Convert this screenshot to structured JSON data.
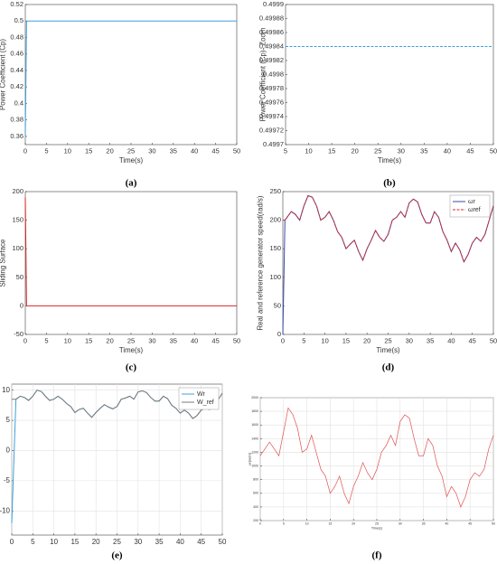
{
  "chart_data": [
    {
      "type": "line",
      "caption": "(a)",
      "xlabel": "Time(s)",
      "ylabel": "Power Coefficient (Cp)",
      "x": [
        0,
        0.3,
        50
      ],
      "values": [
        0.36,
        0.5,
        0.5
      ],
      "color": "#3fa0dc",
      "dash": false,
      "xlim": [
        0,
        50
      ],
      "xticks": [
        0,
        5,
        10,
        15,
        20,
        25,
        30,
        35,
        40,
        45,
        50
      ],
      "ylim": [
        0.35,
        0.52
      ],
      "yticks": [
        0.36,
        0.38,
        0.4,
        0.42,
        0.44,
        0.46,
        0.48,
        0.5,
        0.52
      ],
      "grid": false
    },
    {
      "type": "line",
      "caption": "(b)",
      "xlabel": "Time(s)",
      "ylabel": "Power Coefficient (Cp)- Zoom",
      "x": [
        5,
        50
      ],
      "values": [
        0.49984,
        0.49984
      ],
      "color": "#3fa0dc",
      "dash": true,
      "xlim": [
        5,
        50
      ],
      "xticks": [
        5,
        10,
        15,
        20,
        25,
        30,
        35,
        40,
        45,
        50
      ],
      "ylim": [
        0.4997,
        0.4999
      ],
      "yticks": [
        0.4997,
        0.49972,
        0.49974,
        0.49976,
        0.49978,
        0.4998,
        0.49982,
        0.49984,
        0.49986,
        0.49988,
        0.4999
      ],
      "grid": false
    },
    {
      "type": "line",
      "caption": "(c)",
      "xlabel": "Time(s)",
      "ylabel": "Sliding Surface",
      "x": [
        0,
        0.3,
        50
      ],
      "values": [
        190,
        0,
        0
      ],
      "color": "#d9262a",
      "dash": false,
      "xlim": [
        0,
        50
      ],
      "xticks": [
        0,
        5,
        10,
        15,
        20,
        25,
        30,
        35,
        40,
        45,
        50
      ],
      "ylim": [
        -50,
        200
      ],
      "yticks": [
        -50,
        0,
        50,
        100,
        150,
        200
      ],
      "grid": false
    },
    {
      "type": "line",
      "caption": "(d)",
      "xlabel": "Time(s)",
      "ylabel": "Real and reference generator speed(rad/s)",
      "x": [
        0,
        0.5,
        1,
        2,
        3,
        4,
        5,
        6,
        7,
        8,
        9,
        10,
        11,
        12,
        13,
        14,
        15,
        16,
        17,
        18,
        19,
        20,
        21,
        22,
        23,
        24,
        25,
        26,
        27,
        28,
        29,
        30,
        31,
        32,
        33,
        34,
        35,
        36,
        37,
        38,
        39,
        40,
        41,
        42,
        43,
        44,
        45,
        46,
        47,
        48,
        49,
        50
      ],
      "series": [
        {
          "name": "ωr",
          "color": "#3b4ba8",
          "dash": false,
          "values": [
            0,
            200,
            205,
            215,
            210,
            200,
            225,
            243,
            240,
            225,
            200,
            205,
            215,
            200,
            180,
            170,
            150,
            158,
            165,
            145,
            130,
            150,
            165,
            182,
            170,
            163,
            175,
            200,
            205,
            215,
            205,
            230,
            237,
            232,
            210,
            195,
            195,
            215,
            205,
            180,
            165,
            145,
            160,
            148,
            127,
            140,
            160,
            170,
            163,
            175,
            200,
            225
          ]
        },
        {
          "name": "ωref",
          "color": "#d9262a",
          "dash": true,
          "values": [
            200,
            200,
            205,
            215,
            210,
            200,
            225,
            243,
            240,
            225,
            200,
            205,
            215,
            200,
            180,
            170,
            150,
            158,
            165,
            145,
            130,
            150,
            165,
            182,
            170,
            163,
            175,
            200,
            205,
            215,
            205,
            230,
            237,
            232,
            210,
            195,
            195,
            215,
            205,
            180,
            165,
            145,
            160,
            148,
            127,
            140,
            160,
            170,
            163,
            175,
            200,
            225
          ]
        }
      ],
      "legend": "upper right",
      "xlim": [
        0,
        50
      ],
      "xticks": [
        0,
        5,
        10,
        15,
        20,
        25,
        30,
        35,
        40,
        45,
        50
      ],
      "ylim": [
        0,
        250
      ],
      "yticks": [
        0,
        50,
        100,
        150,
        200,
        250
      ],
      "grid": false
    },
    {
      "type": "line",
      "caption": "(e)",
      "x": [
        0,
        1,
        2,
        3,
        4,
        5,
        6,
        7,
        8,
        9,
        10,
        11,
        12,
        13,
        14,
        15,
        16,
        17,
        18,
        19,
        20,
        21,
        22,
        23,
        24,
        25,
        26,
        27,
        28,
        29,
        30,
        31,
        32,
        33,
        34,
        35,
        36,
        37,
        38,
        39,
        40,
        41,
        42,
        43,
        44,
        45,
        46,
        47,
        48,
        49,
        50
      ],
      "series": [
        {
          "name": "Wr",
          "color": "#3fa0dc",
          "dash": false,
          "values": [
            -12,
            8.5,
            9,
            8.8,
            8.3,
            9,
            10,
            9.8,
            9,
            8.3,
            8.5,
            9,
            8.5,
            7.8,
            7.3,
            6.3,
            6.8,
            7,
            6.2,
            5.5,
            6.3,
            7,
            7.6,
            7.2,
            6.9,
            7.3,
            8.5,
            8.7,
            9,
            8.5,
            9.7,
            9.9,
            9.6,
            8.8,
            8.2,
            8.2,
            9,
            8.6,
            7.5,
            7,
            6.2,
            6.7,
            6.2,
            5.3,
            5.8,
            6.7,
            7,
            6.8,
            7.3,
            8.4,
            9.5
          ]
        },
        {
          "name": "W_ref",
          "color": "#7a7a7a",
          "dash": false,
          "values": [
            8.5,
            8.5,
            9,
            8.8,
            8.3,
            9,
            10,
            9.8,
            9,
            8.3,
            8.5,
            9,
            8.5,
            7.8,
            7.3,
            6.3,
            6.8,
            7,
            6.2,
            5.5,
            6.3,
            7,
            7.6,
            7.2,
            6.9,
            7.3,
            8.5,
            8.7,
            9,
            8.5,
            9.7,
            9.9,
            9.6,
            8.8,
            8.2,
            8.2,
            9,
            8.6,
            7.5,
            7,
            6.2,
            6.7,
            6.2,
            5.3,
            5.8,
            6.7,
            7,
            6.8,
            7.3,
            8.4,
            9.5
          ]
        }
      ],
      "legend": "upper right",
      "xlim": [
        0,
        50
      ],
      "xticks": [
        0,
        5,
        10,
        15,
        20,
        25,
        30,
        35,
        40,
        45,
        50
      ],
      "ylim": [
        -14,
        11
      ],
      "yticks": [
        -10,
        -5,
        0,
        5,
        10
      ],
      "grid": true
    },
    {
      "type": "line",
      "caption": "(f)",
      "xlabel": "Time(s)",
      "ylabel": "ωr(rad/s)",
      "x": [
        0,
        1,
        2,
        3,
        4,
        5,
        6,
        7,
        8,
        9,
        10,
        11,
        12,
        13,
        14,
        15,
        16,
        17,
        18,
        19,
        20,
        21,
        22,
        23,
        24,
        25,
        26,
        27,
        28,
        29,
        30,
        31,
        32,
        33,
        34,
        35,
        36,
        37,
        38,
        39,
        40,
        41,
        42,
        43,
        44,
        45,
        46,
        47,
        48,
        49,
        50
      ],
      "values": [
        1150,
        1250,
        1350,
        1250,
        1150,
        1500,
        1850,
        1750,
        1550,
        1200,
        1250,
        1450,
        1200,
        950,
        850,
        600,
        700,
        850,
        600,
        450,
        700,
        850,
        1050,
        900,
        800,
        950,
        1200,
        1300,
        1450,
        1300,
        1650,
        1750,
        1700,
        1400,
        1150,
        1150,
        1400,
        1300,
        1000,
        850,
        550,
        700,
        600,
        400,
        550,
        800,
        900,
        850,
        950,
        1250,
        1450
      ],
      "color": "#e05050",
      "dash": false,
      "xlim": [
        0,
        50
      ],
      "xticks": [
        0,
        5,
        10,
        15,
        20,
        25,
        30,
        35,
        40,
        45,
        50
      ],
      "ylim": [
        200,
        2000
      ],
      "yticks": [
        200,
        400,
        600,
        800,
        1000,
        1200,
        1400,
        1600,
        1800,
        2000
      ],
      "grid": true
    }
  ]
}
